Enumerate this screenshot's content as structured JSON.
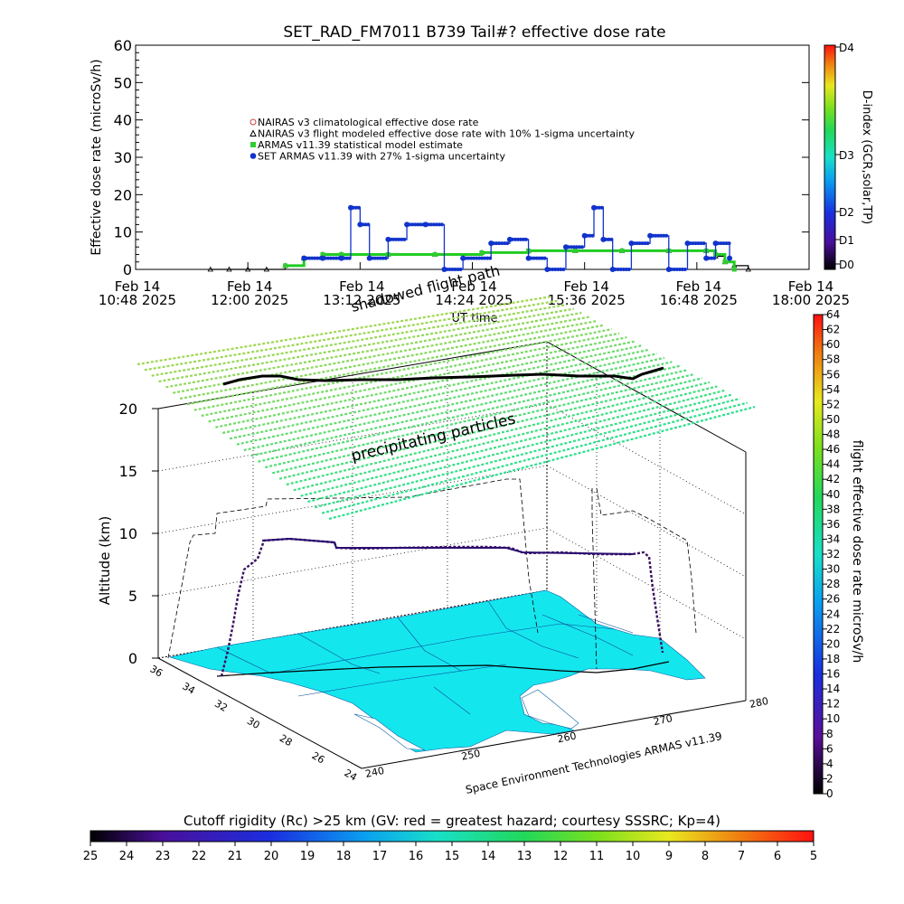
{
  "top_chart": {
    "title": "SET_RAD_FM7011  B739 Tail#? effective dose rate",
    "ylabel": "Effective dose rate (microSv/h)",
    "xlabel": "UT time",
    "yticks": [
      "0",
      "10",
      "20",
      "30",
      "40",
      "50",
      "60"
    ],
    "xticks": [
      {
        "l1": "Feb 14",
        "l2": "10:48 2025"
      },
      {
        "l1": "Feb 14",
        "l2": "12:00 2025"
      },
      {
        "l1": "Feb 14",
        "l2": "13:12 2025"
      },
      {
        "l1": "Feb 14",
        "l2": "14:24 2025"
      },
      {
        "l1": "Feb 14",
        "l2": "15:36 2025"
      },
      {
        "l1": "Feb 14",
        "l2": "16:48 2025"
      },
      {
        "l1": "Feb 14",
        "l2": "18:00 2025"
      }
    ],
    "legend": [
      {
        "label": "NAIRAS v3 climatological effective dose rate",
        "color": "#cc4444",
        "marker": "circle"
      },
      {
        "label": "NAIRAS v3 flight modeled effective dose rate with 10% 1-sigma uncertainty",
        "color": "#000000",
        "marker": "triangle"
      },
      {
        "label": "ARMAS v11.39 statistical model estimate",
        "color": "#33cc33",
        "marker": "square"
      },
      {
        "label": "SET ARMAS v11.39 with 27% 1-sigma uncertainty",
        "color": "#1133cc",
        "marker": "dot"
      }
    ],
    "right_axis_label": "D-index (GCR,solar,TP)",
    "right_axis_ticks": [
      "D4",
      "D3",
      "D2",
      "D1",
      "D0"
    ]
  },
  "chart_data": [
    {
      "type": "scatter",
      "title": "SET_RAD_FM7011  B739 Tail#? effective dose rate",
      "xlabel": "UT time",
      "ylabel": "Effective dose rate (microSv/h)",
      "ylim": [
        0,
        60
      ],
      "x_unit": "hours UT, Feb 14 2025",
      "xlim": [
        10.8,
        18.0
      ],
      "series": [
        {
          "name": "NAIRAS v3 flight modeled effective dose rate with 10% 1-sigma uncertainty",
          "x": [
            11.6,
            11.8,
            12.0,
            12.2,
            12.4,
            12.6,
            12.8,
            13.0,
            13.5,
            14.0,
            14.5,
            15.0,
            15.5,
            16.0,
            16.5,
            16.9,
            17.0,
            17.1,
            17.2,
            17.35
          ],
          "y": [
            0,
            0,
            0,
            0,
            1,
            3,
            4,
            4,
            4,
            4,
            4.5,
            5,
            5,
            5,
            5,
            5,
            3.5,
            2,
            1,
            0
          ]
        },
        {
          "name": "ARMAS v11.39 statistical model estimate",
          "x": [
            12.4,
            12.6,
            12.8,
            13.0,
            13.5,
            14.0,
            14.5,
            15.0,
            15.5,
            16.0,
            16.5,
            16.9,
            17.0,
            17.1,
            17.2
          ],
          "y": [
            1,
            3,
            4,
            4,
            4,
            4,
            4.5,
            5,
            5,
            5,
            5,
            5,
            4,
            2,
            0
          ]
        },
        {
          "name": "SET ARMAS v11.39 with 27% 1-sigma uncertainty",
          "x": [
            12.6,
            12.8,
            13.0,
            13.1,
            13.2,
            13.3,
            13.5,
            13.7,
            13.9,
            14.1,
            14.3,
            14.6,
            14.8,
            15.0,
            15.2,
            15.4,
            15.6,
            15.7,
            15.8,
            15.9,
            16.1,
            16.3,
            16.5,
            16.7,
            16.9,
            17.0,
            17.15
          ],
          "y": [
            3,
            3,
            3,
            16.5,
            12,
            3,
            8,
            12,
            12,
            0,
            3,
            7,
            8,
            3,
            0,
            6,
            9,
            16.5,
            8,
            0,
            7,
            9,
            0,
            7,
            3,
            7,
            3
          ]
        }
      ]
    },
    {
      "type": "scatter",
      "title": "",
      "ylabel": "Altitude (km)",
      "zlim": [
        0,
        20
      ],
      "z_ticks": [
        "0",
        "5",
        "10",
        "15",
        "20"
      ],
      "lat_ticks": [
        "36",
        "34",
        "32",
        "30",
        "28",
        "26",
        "24"
      ],
      "lon_ticks": [
        "240",
        "250",
        "260",
        "270",
        "280"
      ],
      "flight_altitude_km": [
        0,
        2,
        5,
        8,
        9.8,
        9.8,
        9.7,
        9.4,
        9.2,
        9.1,
        9.1,
        9.1,
        9.0,
        9.0,
        8.6,
        8.4,
        5,
        2,
        0
      ],
      "colorbar": {
        "label": "flight effective dose rate microSv/h",
        "ticks": [
          "0",
          "2",
          "4",
          "6",
          "8",
          "10",
          "12",
          "14",
          "16",
          "18",
          "20",
          "22",
          "24",
          "26",
          "28",
          "30",
          "32",
          "34",
          "36",
          "38",
          "40",
          "42",
          "44",
          "46",
          "48",
          "50",
          "52",
          "54",
          "56",
          "58",
          "60",
          "62",
          "64"
        ]
      }
    }
  ],
  "map_annotations": {
    "shadowed": "shadowed flight path",
    "precip": "precipitating particles",
    "credit": "Space Environment Technologies ARMAS v11.39"
  },
  "bottom_colorbar": {
    "title": "Cutoff rigidity (Rc) >25 km (GV: red = greatest hazard; courtesy SSSRC; Kp=4)",
    "ticks": [
      "25",
      "24",
      "23",
      "22",
      "21",
      "20",
      "19",
      "18",
      "17",
      "16",
      "15",
      "14",
      "13",
      "12",
      "11",
      "10",
      "9",
      "8",
      "7",
      "6",
      "5"
    ]
  }
}
